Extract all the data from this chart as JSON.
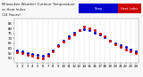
{
  "title": "Milwaukee Weather Outdoor Temperature vs Heat Index (24 Hours)",
  "title_fontsize": 3.0,
  "bg_color": "#f8f8f8",
  "plot_bg": "#ffffff",
  "tick_fontsize": 2.8,
  "hours": [
    1,
    2,
    3,
    4,
    5,
    6,
    7,
    8,
    9,
    10,
    11,
    12,
    13,
    14,
    15,
    16,
    17,
    18,
    19,
    20,
    21,
    22,
    23,
    24
  ],
  "hour_labels": [
    "1",
    "2",
    "3",
    "4",
    "5",
    "6",
    "7",
    "8",
    "9",
    "10",
    "11",
    "12",
    "13",
    "14",
    "15",
    "16",
    "17",
    "18",
    "19",
    "20",
    "21",
    "22",
    "23",
    "24"
  ],
  "temp": [
    58,
    57,
    55,
    54,
    53,
    52,
    54,
    58,
    63,
    68,
    72,
    76,
    78,
    79,
    78,
    76,
    74,
    71,
    68,
    65,
    63,
    61,
    59,
    57
  ],
  "heat_index": [
    56,
    55,
    53,
    52,
    51,
    50,
    52,
    57,
    62,
    67,
    70,
    74,
    78,
    82,
    80,
    78,
    75,
    72,
    68,
    64,
    61,
    59,
    57,
    55
  ],
  "temp_color": "#0000cc",
  "heat_color": "#cc0000",
  "ylim_min": 45,
  "ylim_max": 90,
  "yticks": [
    50,
    55,
    60,
    65,
    70,
    75,
    80,
    85
  ],
  "ytick_labels": [
    "50",
    "55",
    "60",
    "65",
    "70",
    "75",
    "80",
    "85"
  ],
  "legend_temp_label": "Temp",
  "legend_heat_label": "Heat Index",
  "grid_color": "#aaaaaa",
  "marker_size": 1.2
}
